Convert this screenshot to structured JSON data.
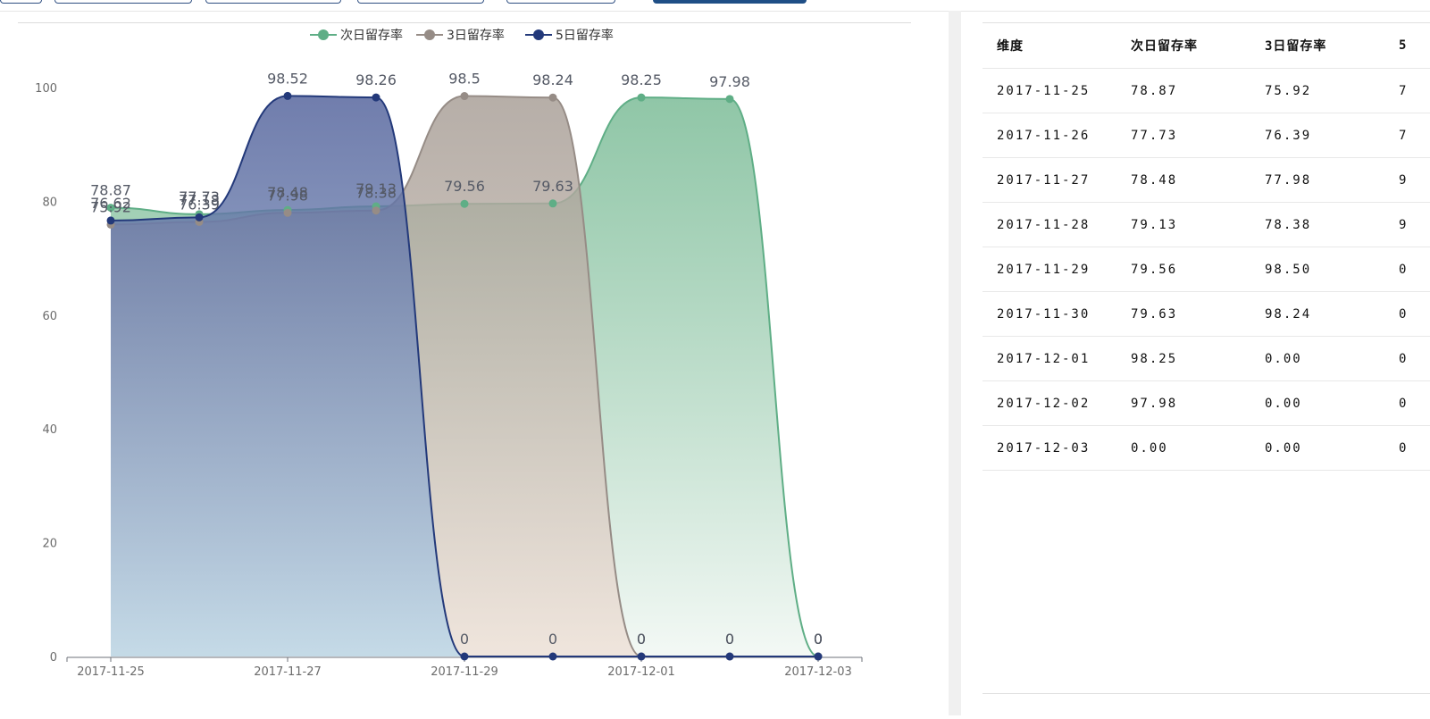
{
  "chart_data": {
    "type": "area",
    "categories": [
      "2017-11-25",
      "2017-11-26",
      "2017-11-27",
      "2017-11-28",
      "2017-11-29",
      "2017-11-30",
      "2017-12-01",
      "2017-12-02",
      "2017-12-03"
    ],
    "x_tick_labels": [
      "2017-11-25",
      "2017-11-27",
      "2017-11-29",
      "2017-12-01",
      "2017-12-03"
    ],
    "y_ticks": [
      "0",
      "20",
      "40",
      "60",
      "80",
      "100"
    ],
    "ylim": [
      0,
      100
    ],
    "legend_position": "top-center",
    "series": [
      {
        "name": "次日留存率",
        "color": "#5fae86",
        "values": [
          78.87,
          77.73,
          78.48,
          79.13,
          79.56,
          79.63,
          98.25,
          97.98,
          0
        ],
        "labels": [
          "78.87",
          "77.73",
          "78.48",
          "79.13",
          "79.56",
          "79.63",
          "98.25",
          "97.98",
          "0"
        ]
      },
      {
        "name": "3日留存率",
        "color": "#968c86",
        "values": [
          75.92,
          76.39,
          77.98,
          78.38,
          98.5,
          98.24,
          0,
          0,
          0
        ],
        "labels": [
          "75.92",
          "76.39",
          "77.98",
          "78.38",
          "98.5",
          "98.24",
          "0",
          "0",
          "0"
        ]
      },
      {
        "name": "5日留存率",
        "color": "#23397a",
        "values": [
          76.62,
          77.18,
          98.52,
          98.26,
          0,
          0,
          0,
          0,
          0
        ],
        "labels": [
          "76.62",
          "77.18",
          "98.52",
          "98.26",
          "0",
          "0",
          "0",
          "0",
          "0"
        ]
      }
    ]
  },
  "table": {
    "headers": [
      "维度",
      "次日留存率",
      "3日留存率",
      "5"
    ],
    "rows": [
      [
        "2017-11-25",
        "78.87",
        "75.92",
        "7"
      ],
      [
        "2017-11-26",
        "77.73",
        "76.39",
        "7"
      ],
      [
        "2017-11-27",
        "78.48",
        "77.98",
        "9"
      ],
      [
        "2017-11-28",
        "79.13",
        "78.38",
        "9"
      ],
      [
        "2017-11-29",
        "79.56",
        "98.50",
        "0"
      ],
      [
        "2017-11-30",
        "79.63",
        "98.24",
        "0"
      ],
      [
        "2017-12-01",
        "98.25",
        "0.00",
        "0"
      ],
      [
        "2017-12-02",
        "97.98",
        "0.00",
        "0"
      ],
      [
        "2017-12-03",
        "0.00",
        "0.00",
        "0"
      ]
    ]
  }
}
